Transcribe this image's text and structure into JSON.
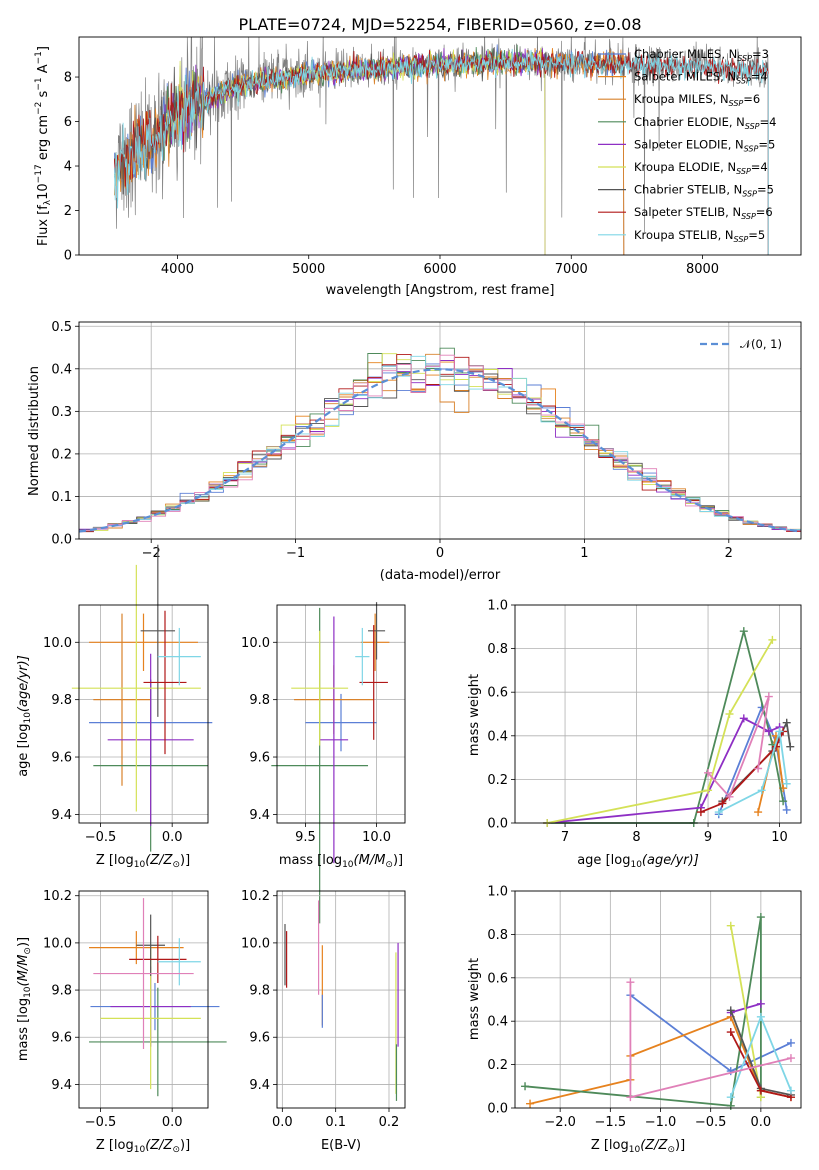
{
  "title": "PLATE=0724, MJD=52254, FIBERID=0560, z=0.08",
  "colors": {
    "Chabrier MILES": "#5b7fd6",
    "Salpeter MILES": "#e6821e",
    "Kroupa MILES": "#d9822b",
    "Chabrier ELODIE": "#4e8a5a",
    "Salpeter ELODIE": "#8e2fc4",
    "Kroupa ELODIE": "#d4e157",
    "Chabrier STELIB": "#555555",
    "Salpeter STELIB": "#b01818",
    "Kroupa STELIB": "#7fd6e6",
    "pink": "#e080b8"
  },
  "spectrum": {
    "xlabel": "wavelength [Angstrom, rest frame]",
    "ylabel_main": "Flux [f",
    "ylabel_sub": "λ",
    "ylabel_rest": "10",
    "ylabel_exp": "−17",
    "ylabel_end": " erg cm",
    "ylabel_exp2": "−2",
    "ylabel_s": " s",
    "ylabel_exp3": "−1",
    "ylabel_A": " A",
    "ylabel_exp4": "−1",
    "ylabel_close": "]",
    "xticks": [
      "4000",
      "5000",
      "6000",
      "7000",
      "8000"
    ],
    "yticks": [
      "0",
      "2",
      "4",
      "6",
      "8"
    ],
    "legend": [
      {
        "label": "Chabrier MILES, N",
        "sub": "SSP",
        "eq": "=3",
        "key": "Chabrier MILES"
      },
      {
        "label": "Salpeter MILES, N",
        "sub": "SSP",
        "eq": "=4",
        "key": "Salpeter MILES"
      },
      {
        "label": "Kroupa MILES, N",
        "sub": "SSP",
        "eq": "=6",
        "key": "Kroupa MILES"
      },
      {
        "label": "Chabrier ELODIE, N",
        "sub": "SSP",
        "eq": "=4",
        "key": "Chabrier ELODIE"
      },
      {
        "label": "Salpeter ELODIE, N",
        "sub": "SSP",
        "eq": "=5",
        "key": "Salpeter ELODIE"
      },
      {
        "label": "Kroupa ELODIE, N",
        "sub": "SSP",
        "eq": "=4",
        "key": "Kroupa ELODIE"
      },
      {
        "label": "Chabrier STELIB, N",
        "sub": "SSP",
        "eq": "=5",
        "key": "Chabrier STELIB"
      },
      {
        "label": "Salpeter STELIB, N",
        "sub": "SSP",
        "eq": "=6",
        "key": "Salpeter STELIB"
      },
      {
        "label": "Kroupa STELIB, N",
        "sub": "SSP",
        "eq": "=5",
        "key": "Kroupa STELIB"
      }
    ]
  },
  "residuals": {
    "xlabel": "(data-model)/error",
    "ylabel": "Normed distribution",
    "xticks": [
      "−2",
      "−1",
      "0",
      "1",
      "2"
    ],
    "yticks": [
      "0.0",
      "0.1",
      "0.2",
      "0.3",
      "0.4",
      "0.5"
    ],
    "legend_label": "𝒩(0, 1)"
  },
  "panels": {
    "age_ylabel_main": "age  [log",
    "age_ylabel_sub": "10",
    "age_ylabel_end": "(age/yr)]",
    "mass_ylabel_main": "mass [log",
    "mass_ylabel_sub": "10",
    "mass_ylabel_end": "(M/M",
    "mass_ylabel_close": ")]",
    "z_xlabel_main": "Z [log",
    "z_xlabel_sub": "10",
    "z_xlabel_end": "(Z/Z",
    "z_xlabel_close": ")]",
    "ebv_xlabel": "E(B-V)",
    "mw_ylabel": "mass weight",
    "age_xlabel_main": "age  [log",
    "age_xlabel_sub": "10",
    "age_xlabel_end": "(age/yr)]",
    "age_yticks": [
      "9.4",
      "9.6",
      "9.8",
      "10.0"
    ],
    "z_xticks_small": [
      "−0.5",
      "0.0"
    ],
    "mass_xticks": [
      "9.5",
      "10.0"
    ],
    "mass_yticks": [
      "9.4",
      "9.6",
      "9.8",
      "10.0",
      "10.2"
    ],
    "ebv_xticks": [
      "0.0",
      "0.1",
      "0.2"
    ],
    "mw_yticks": [
      "0.0",
      "0.2",
      "0.4",
      "0.6",
      "0.8",
      "1.0"
    ],
    "age_xticks": [
      "7",
      "8",
      "9",
      "10"
    ],
    "z_xticks_big": [
      "−2.0",
      "−1.5",
      "−1.0",
      "−0.5",
      "0.0"
    ]
  },
  "chart_data": [
    {
      "type": "line",
      "title": "PLATE=0724, MJD=52254, FIBERID=0560, z=0.08",
      "xlabel": "wavelength [Angstrom, rest frame]",
      "ylabel": "Flux [fλ 10^-17 erg cm^-2 s^-1 A^-1]",
      "xlim": [
        3250,
        8750
      ],
      "ylim": [
        0,
        9.8
      ],
      "grid": false,
      "legend_position": "upper right",
      "series_x_range": [
        3520,
        8500
      ],
      "continuum_x": [
        3520,
        3800,
        4000,
        4200,
        4500,
        5000,
        5500,
        6000,
        6500,
        7000,
        7400,
        8000,
        8500
      ],
      "continuum_y": [
        4.0,
        5.2,
        6.4,
        7.0,
        7.7,
        8.2,
        8.4,
        8.6,
        8.7,
        8.7,
        8.6,
        8.5,
        8.3
      ],
      "models": [
        "Chabrier MILES",
        "Salpeter MILES",
        "Kroupa MILES",
        "Chabrier ELODIE",
        "Salpeter ELODIE",
        "Kroupa ELODIE",
        "Chabrier STELIB",
        "Salpeter STELIB",
        "Kroupa STELIB"
      ],
      "model_x_ranges": [
        [
          3520,
          7400
        ],
        [
          3520,
          7400
        ],
        [
          3520,
          7400
        ],
        [
          3900,
          6800
        ],
        [
          3900,
          6800
        ],
        [
          3900,
          6800
        ],
        [
          3520,
          8500
        ],
        [
          3520,
          8500
        ],
        [
          3520,
          8500
        ]
      ]
    },
    {
      "type": "bar",
      "xlabel": "(data-model)/error",
      "ylabel": "Normed distribution",
      "xlim": [
        -2.5,
        2.5
      ],
      "ylim": [
        0,
        0.51
      ],
      "grid": true,
      "legend_position": "upper right",
      "bin_width": 0.1,
      "gaussian": {
        "name": "𝒩(0, 1)",
        "mean": 0,
        "sigma": 1
      },
      "spiky_bins_note_values": [
        {
          "x": -0.35,
          "y": 0.46
        },
        {
          "x": 0.15,
          "y": 0.49
        },
        {
          "x": 0.35,
          "y": 0.45
        },
        {
          "x": -0.05,
          "y": 0.45
        }
      ]
    },
    {
      "type": "scatter",
      "panel": "age vs Z",
      "xlim": [
        -0.65,
        0.25
      ],
      "ylim": [
        9.37,
        10.13
      ],
      "points": [
        {
          "m": "Chabrier MILES",
          "x": -0.15,
          "xerr": 0.43,
          "y": 9.72,
          "yerr": 0.15
        },
        {
          "m": "Salpeter MILES",
          "x": -0.2,
          "xerr": 0.38,
          "y": 10.0,
          "yerr": 0.1
        },
        {
          "m": "Kroupa MILES",
          "x": -0.35,
          "xerr": 0.2,
          "y": 9.8,
          "yerr": 0.3
        },
        {
          "m": "Chabrier ELODIE",
          "x": -0.15,
          "xerr": 0.4,
          "y": 9.57,
          "yerr": 0.3
        },
        {
          "m": "Salpeter ELODIE",
          "x": -0.15,
          "xerr": 0.3,
          "y": 9.66,
          "yerr": 0.3
        },
        {
          "m": "Kroupa ELODIE",
          "x": -0.25,
          "xerr": 0.45,
          "y": 9.84,
          "yerr": 0.43
        },
        {
          "m": "Chabrier STELIB",
          "x": -0.1,
          "xerr": 0.12,
          "y": 10.04,
          "yerr": 0.3
        },
        {
          "m": "Salpeter STELIB",
          "x": -0.05,
          "xerr": 0.15,
          "y": 9.86,
          "yerr": 0.25
        },
        {
          "m": "Kroupa STELIB",
          "x": 0.05,
          "xerr": 0.15,
          "y": 9.95,
          "yerr": 0.1
        }
      ]
    },
    {
      "type": "scatter",
      "panel": "age vs mass",
      "xlim": [
        9.3,
        10.2
      ],
      "ylim": [
        9.37,
        10.13
      ],
      "points": [
        {
          "m": "Chabrier MILES",
          "x": 9.75,
          "xerr": 0.25,
          "y": 9.72,
          "yerr": 0.1
        },
        {
          "m": "Salpeter MILES",
          "x": 9.99,
          "xerr": 0.1,
          "y": 10.0,
          "yerr": 0.1
        },
        {
          "m": "Kroupa MILES",
          "x": 9.7,
          "xerr": 0.28,
          "y": 9.8,
          "yerr": 0.12
        },
        {
          "m": "Chabrier ELODIE",
          "x": 9.6,
          "xerr": 0.34,
          "y": 9.57,
          "yerr": 0.55
        },
        {
          "m": "Salpeter ELODIE",
          "x": 9.7,
          "xerr": 0.1,
          "y": 9.66,
          "yerr": 0.43
        },
        {
          "m": "Kroupa ELODIE",
          "x": 9.6,
          "xerr": 0.2,
          "y": 9.84,
          "yerr": 0.2
        },
        {
          "m": "Chabrier STELIB",
          "x": 10.0,
          "xerr": 0.06,
          "y": 10.04,
          "yerr": 0.1
        },
        {
          "m": "Salpeter STELIB",
          "x": 9.98,
          "xerr": 0.1,
          "y": 9.86,
          "yerr": 0.2
        },
        {
          "m": "Kroupa STELIB",
          "x": 9.9,
          "xerr": 0.05,
          "y": 9.95,
          "yerr": 0.1
        }
      ]
    },
    {
      "type": "line",
      "panel": "mass weight vs age",
      "xlim": [
        6.3,
        10.3
      ],
      "ylim": [
        0,
        1.0
      ],
      "series": [
        {
          "m": "Chabrier MILES",
          "x": [
            9.15,
            9.75,
            9.95,
            10.1
          ],
          "y": [
            0.04,
            0.53,
            0.37,
            0.06
          ]
        },
        {
          "m": "Salpeter MILES",
          "x": [
            9.7,
            9.95,
            10.05
          ],
          "y": [
            0.05,
            0.4,
            0.16
          ]
        },
        {
          "m": "Chabrier ELODIE",
          "x": [
            6.75,
            8.8,
            9.5,
            9.9,
            10.05
          ],
          "y": [
            0.0,
            0.0,
            0.88,
            0.36,
            0.1
          ]
        },
        {
          "m": "Salpeter ELODIE",
          "x": [
            6.75,
            8.9,
            9.5,
            9.85,
            10.0
          ],
          "y": [
            0.0,
            0.07,
            0.48,
            0.42,
            0.44
          ]
        },
        {
          "m": "Kroupa ELODIE",
          "x": [
            6.75,
            9.0,
            9.3,
            9.9
          ],
          "y": [
            0.0,
            0.15,
            0.5,
            0.84
          ]
        },
        {
          "m": "Chabrier STELIB",
          "x": [
            9.2,
            9.9,
            10.1,
            10.15
          ],
          "y": [
            0.1,
            0.33,
            0.46,
            0.35
          ]
        },
        {
          "m": "Salpeter STELIB",
          "x": [
            8.9,
            9.2,
            9.95,
            10.05
          ],
          "y": [
            0.05,
            0.09,
            0.35,
            0.42
          ]
        },
        {
          "m": "Kroupa STELIB",
          "x": [
            9.15,
            9.75,
            10.0,
            10.1
          ],
          "y": [
            0.05,
            0.15,
            0.42,
            0.18
          ]
        },
        {
          "m": "pink",
          "x": [
            9.0,
            9.3,
            9.85,
            9.7
          ],
          "y": [
            0.23,
            0.12,
            0.58,
            0.25
          ]
        }
      ]
    },
    {
      "type": "scatter",
      "panel": "mass vs Z",
      "xlim": [
        -0.65,
        0.25
      ],
      "ylim": [
        9.3,
        10.22
      ],
      "points": [
        {
          "m": "Chabrier MILES",
          "x": -0.12,
          "xerr": 0.45,
          "y": 9.73,
          "yerr": 0.1
        },
        {
          "m": "Salpeter MILES",
          "x": -0.25,
          "xerr": 0.33,
          "y": 9.98,
          "yerr": 0.07
        },
        {
          "m": "Chabrier ELODIE",
          "x": -0.1,
          "xerr": 0.48,
          "y": 9.58,
          "yerr": 0.23
        },
        {
          "m": "Salpeter ELODIE",
          "x": -0.15,
          "xerr": 0.28,
          "y": 9.73,
          "yerr": 0.17
        },
        {
          "m": "Kroupa ELODIE",
          "x": -0.15,
          "xerr": 0.35,
          "y": 9.68,
          "yerr": 0.3
        },
        {
          "m": "Chabrier STELIB",
          "x": -0.15,
          "xerr": 0.1,
          "y": 9.99,
          "yerr": 0.13
        },
        {
          "m": "Salpeter STELIB",
          "x": -0.1,
          "xerr": 0.2,
          "y": 9.93,
          "yerr": 0.1
        },
        {
          "m": "Kroupa STELIB",
          "x": 0.05,
          "xerr": 0.15,
          "y": 9.92,
          "yerr": 0.1
        },
        {
          "m": "pink",
          "x": -0.2,
          "xerr": 0.35,
          "y": 9.87,
          "yerr": 0.32
        }
      ]
    },
    {
      "type": "scatter",
      "panel": "mass vs E(B-V)",
      "xlim": [
        -0.01,
        0.23
      ],
      "ylim": [
        9.3,
        10.22
      ],
      "points": [
        {
          "m": "Chabrier STELIB",
          "x": 0.005,
          "y": 9.95,
          "yerr": 0.13
        },
        {
          "m": "Salpeter STELIB",
          "x": 0.008,
          "y": 9.93,
          "yerr": 0.12
        },
        {
          "m": "pink",
          "x": 0.068,
          "y": 9.98,
          "yerr": 0.2
        },
        {
          "m": "Salpeter MILES",
          "x": 0.075,
          "y": 9.82,
          "yerr": 0.17
        },
        {
          "m": "Chabrier MILES",
          "x": 0.075,
          "y": 9.71,
          "yerr": 0.07
        },
        {
          "m": "Kroupa ELODIE",
          "x": 0.213,
          "y": 9.66,
          "yerr": 0.3
        },
        {
          "m": "Salpeter ELODIE",
          "x": 0.217,
          "y": 9.78,
          "yerr": 0.22
        },
        {
          "m": "Chabrier ELODIE",
          "x": 0.214,
          "y": 9.45,
          "yerr": 0.12
        }
      ]
    },
    {
      "type": "line",
      "panel": "mass weight vs Z",
      "xlim": [
        -2.45,
        0.4
      ],
      "ylim": [
        0,
        1.0
      ],
      "series": [
        {
          "m": "Chabrier MILES",
          "x": [
            -1.3,
            -0.3,
            0.3
          ],
          "y": [
            0.52,
            0.17,
            0.3
          ]
        },
        {
          "m": "Salpeter MILES",
          "x": [
            -2.3,
            -1.3,
            -1.3,
            -0.3,
            0.0,
            0.3
          ],
          "y": [
            0.02,
            0.13,
            0.24,
            0.42,
            0.08,
            0.05
          ]
        },
        {
          "m": "Chabrier ELODIE",
          "x": [
            -2.35,
            -0.3,
            0.0,
            0.0
          ],
          "y": [
            0.1,
            0.01,
            0.88,
            0.05
          ]
        },
        {
          "m": "Salpeter ELODIE",
          "x": [
            -0.3,
            0.0
          ],
          "y": [
            0.44,
            0.48
          ]
        },
        {
          "m": "Kroupa ELODIE",
          "x": [
            -0.3,
            0.0
          ],
          "y": [
            0.84,
            0.05
          ]
        },
        {
          "m": "Chabrier STELIB",
          "x": [
            -0.3,
            0.0,
            0.3
          ],
          "y": [
            0.45,
            0.09,
            0.06
          ]
        },
        {
          "m": "Salpeter STELIB",
          "x": [
            -0.3,
            0.0,
            0.3
          ],
          "y": [
            0.35,
            0.08,
            0.05
          ]
        },
        {
          "m": "Kroupa STELIB",
          "x": [
            -0.3,
            0.0,
            0.3
          ],
          "y": [
            0.05,
            0.42,
            0.08
          ]
        },
        {
          "m": "pink",
          "x": [
            -1.3,
            -1.3,
            0.3
          ],
          "y": [
            0.58,
            0.05,
            0.23
          ]
        }
      ]
    }
  ]
}
